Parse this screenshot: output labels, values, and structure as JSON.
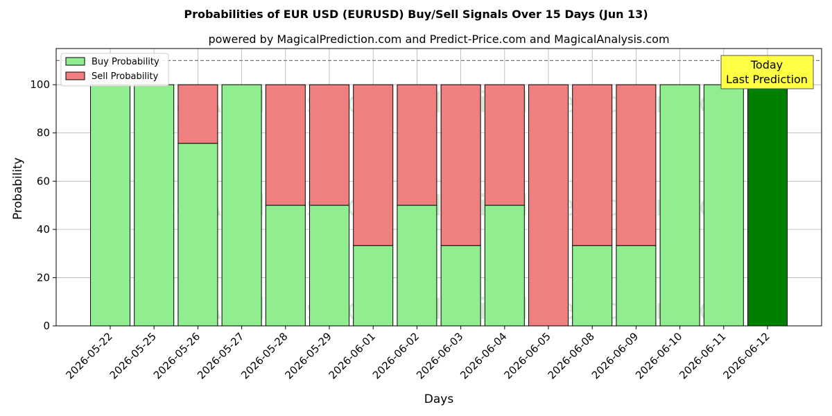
{
  "chart_data": {
    "type": "bar",
    "stacked": true,
    "title": "Probabilities of EUR USD (EURUSD) Buy/Sell Signals Over 15 Days (Jun 13)",
    "subtitle": "powered by MagicalPrediction.com and Predict-Price.com and MagicalAnalysis.com",
    "xlabel": "Days",
    "ylabel": "Probability",
    "ylim": [
      0,
      115
    ],
    "yticks": [
      0,
      20,
      40,
      60,
      80,
      100
    ],
    "grid": true,
    "legend_position": "top-left",
    "reference_line": 110,
    "categories": [
      "2026-05-22",
      "2026-05-25",
      "2026-05-26",
      "2026-05-27",
      "2026-05-28",
      "2026-05-29",
      "2026-06-01",
      "2026-06-02",
      "2026-06-03",
      "2026-06-04",
      "2026-06-05",
      "2026-06-08",
      "2026-06-09",
      "2026-06-10",
      "2026-06-11",
      "2026-06-12"
    ],
    "series": [
      {
        "name": "Buy Probability",
        "color": "#90ee90",
        "values": [
          100,
          100,
          75.7,
          100,
          50,
          50,
          33.3,
          50,
          33.3,
          50,
          0,
          33.3,
          33.3,
          100,
          100,
          100
        ]
      },
      {
        "name": "Sell Probability",
        "color": "#f08080",
        "values": [
          0,
          0,
          24.3,
          0,
          50,
          50,
          66.7,
          50,
          66.7,
          50,
          100,
          66.7,
          66.7,
          0,
          0,
          0
        ]
      }
    ],
    "highlight": {
      "index": 15,
      "color": "#008000"
    },
    "annotation": {
      "line1": "Today",
      "line2": "Last Prediction",
      "background": "#ffff44"
    },
    "watermarks": [
      "MagicalAnalysis.com",
      "MagicalPrediction.com"
    ]
  }
}
